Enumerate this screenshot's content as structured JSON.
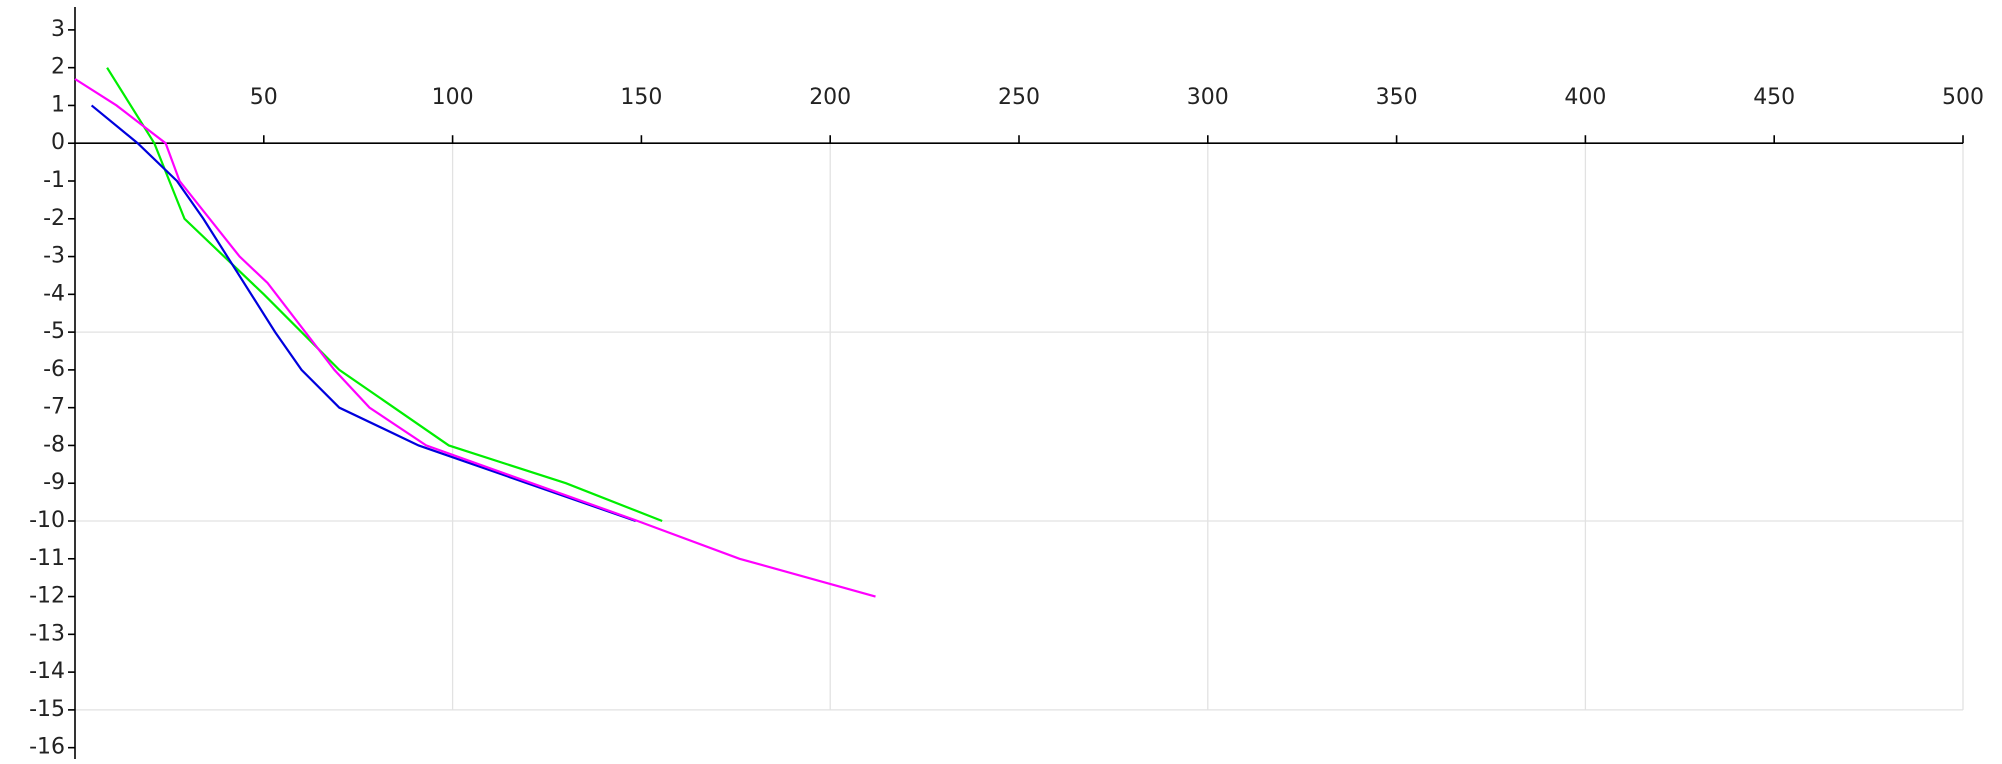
{
  "chart_data": {
    "type": "line",
    "xlim": [
      0,
      500
    ],
    "ylim": [
      -16.3,
      3.5
    ],
    "xticks": [
      50,
      100,
      150,
      200,
      250,
      300,
      350,
      400,
      450,
      500
    ],
    "yticks": [
      3,
      2,
      1,
      0,
      -1,
      -2,
      -3,
      -4,
      -5,
      -6,
      -7,
      -8,
      -9,
      -10,
      -11,
      -12,
      -13,
      -14,
      -15,
      -16
    ],
    "grid": true,
    "series": [
      {
        "color": "#00ee00",
        "x": [
          8.5,
          21,
          29,
          50,
          70,
          99,
          130,
          155.5
        ],
        "values": [
          2,
          0,
          -2,
          -4,
          -6,
          -8,
          -9,
          -10
        ]
      },
      {
        "color": "#0000dd",
        "x": [
          4.4,
          16.6,
          27,
          34,
          53,
          60,
          70,
          91,
          148.5
        ],
        "values": [
          1,
          0,
          -1,
          -2,
          -5,
          -6,
          -7,
          -8,
          -10
        ]
      },
      {
        "color": "#ff00ff",
        "x": [
          0,
          11,
          24,
          27.7,
          43.6,
          51,
          68.7,
          78,
          93,
          149,
          176,
          212
        ],
        "values": [
          1.7,
          1,
          0,
          -1,
          -3,
          -3.7,
          -6,
          -7,
          -8,
          -10,
          -11,
          -12
        ]
      }
    ]
  }
}
